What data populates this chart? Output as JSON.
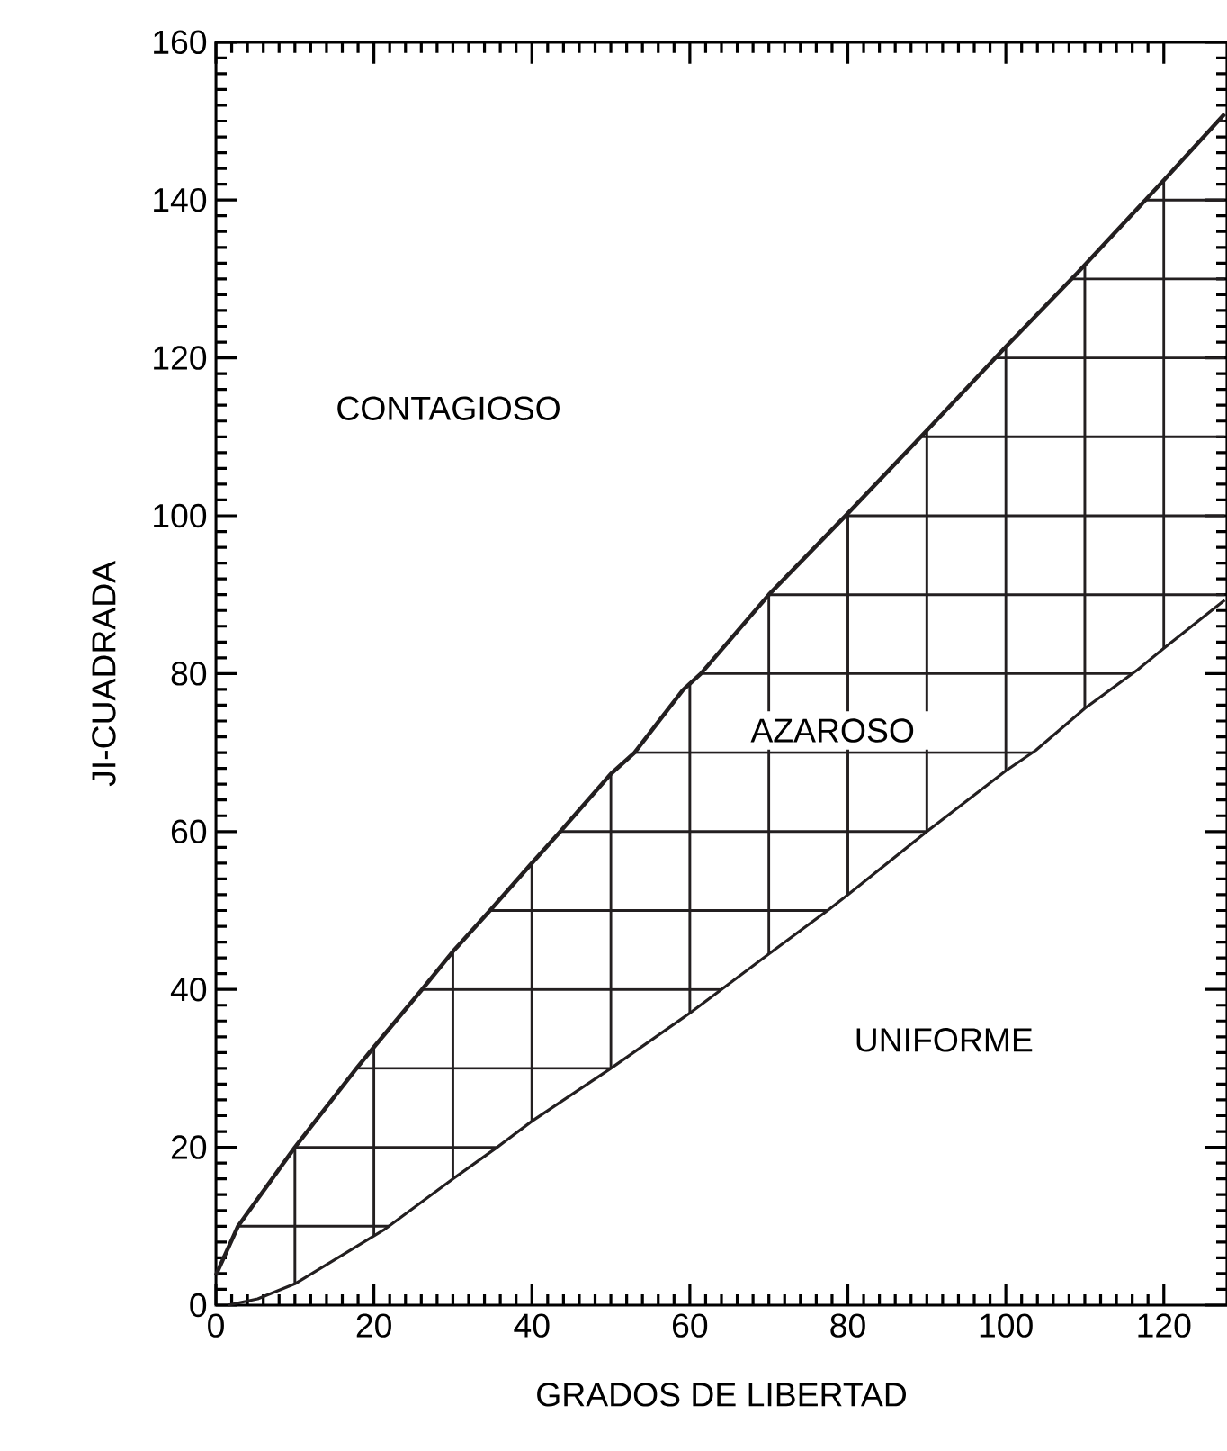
{
  "chart_data": {
    "type": "line",
    "xlabel": "GRADOS DE LIBERTAD",
    "ylabel": "JI-CUADRADA",
    "series": [
      {
        "color": "#231f20",
        "x": [
          0,
          2.8,
          10,
          17.8,
          20,
          26.1,
          30,
          34.7,
          40,
          43.6,
          50,
          53,
          59.1,
          61.4,
          70,
          80,
          90,
          100,
          109,
          120,
          127.7
        ],
        "values": [
          3.8,
          10,
          20,
          30,
          32.7,
          40,
          44.8,
          50,
          56,
          60,
          67.3,
          70,
          77.9,
          80,
          90,
          100.3,
          110.8,
          121.4,
          130.7,
          142.5,
          150.9
        ]
      },
      {
        "color": "#231f20",
        "x": [
          1.5,
          5.3,
          10,
          21.2,
          30,
          35.6,
          40,
          50,
          60,
          64,
          70,
          77.7,
          80,
          90,
          100,
          103.8,
          110,
          116.7,
          120,
          127.7
        ],
        "values": [
          0,
          0.8,
          2.7,
          9.5,
          16,
          20,
          23.3,
          30,
          37,
          40,
          44.5,
          50.2,
          52,
          60,
          67.7,
          70.3,
          75.6,
          80.5,
          83.2,
          89.3
        ]
      }
    ],
    "annotations": [
      "CONTAGIOSO",
      "AZAROSO",
      "UNIFORME"
    ],
    "xlim": [
      0,
      128
    ],
    "ylim": [
      0,
      160
    ],
    "xticks": [
      0,
      20,
      40,
      60,
      80,
      100,
      120
    ],
    "yticks": [
      0,
      20,
      40,
      60,
      80,
      100,
      120,
      140,
      160
    ],
    "grid": true,
    "marker": "none",
    "line_style": "solid"
  }
}
